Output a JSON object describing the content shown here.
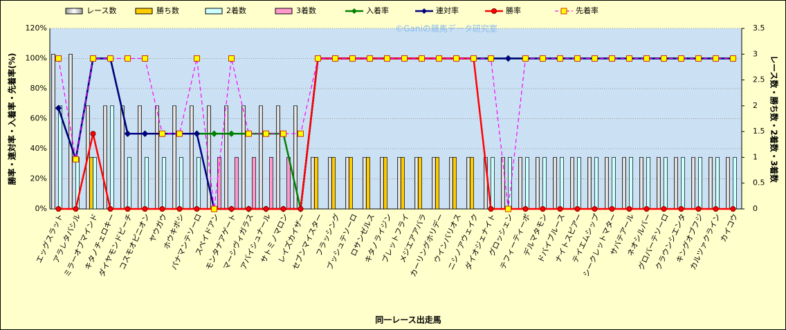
{
  "chart_data": {
    "type": "combo",
    "watermark": "©Ganiの競馬データ研究室",
    "xlabel": "同一レース出走馬",
    "ylabel": "勝率・連対率・入着率・先着率(%)",
    "y2label": "レース数・勝ち数・2着数・3着数",
    "categories": [
      "エッグスラット",
      "アラレタバシル",
      "ミラーオブマインド",
      "キタノチェロキー",
      "ダイヤモンドビーチ",
      "コスモオピニオン",
      "ヤウガウ",
      "ホウキボシ",
      "パナマンテソーロ",
      "スペイドアン",
      "モンタナアゲート",
      "マーシヴィガラス",
      "アバイシュナール",
      "サトミノマロン",
      "レイズカイザー",
      "セブンマイスター",
      "フラッシング",
      "ブッシュテソーロ",
      "ロサンゼルス",
      "キタノライジン",
      "ブレットフライ",
      "メジエアアバラ",
      "カーリングホリデー",
      "ウインバリオス",
      "ニシノアウェイク",
      "ダイオジェナイト",
      "グロッシェン",
      "テフィーティーボ",
      "デルマタモン",
      "ドバイブルース",
      "ナイトスピアー",
      "テイエムシップ",
      "シークレットマター",
      "サバテアール",
      "ネオシルバー",
      "グロバーテソーロ",
      "クラウンシエンタ",
      "キングオブフジ",
      "カルツァクライン",
      "カイコウ"
    ],
    "ylim": [
      0,
      120
    ],
    "yticks": [
      {
        "value": 0,
        "label": "0%"
      },
      {
        "value": 20,
        "label": "20%"
      },
      {
        "value": 40,
        "label": "40%"
      },
      {
        "value": 60,
        "label": "60%"
      },
      {
        "value": 80,
        "label": "80%"
      },
      {
        "value": 100,
        "label": "100%"
      },
      {
        "value": 120,
        "label": "120%"
      }
    ],
    "y2lim": [
      0,
      3.5
    ],
    "y2ticks": [
      0,
      0.5,
      1,
      1.5,
      2,
      2.5,
      3,
      3.5
    ],
    "grid": true,
    "series": [
      {
        "name": "レース数",
        "type": "bar",
        "axis": "y2",
        "color": "#ffffff",
        "values": [
          3,
          3,
          2,
          2,
          2,
          2,
          2,
          2,
          2,
          2,
          2,
          2,
          2,
          2,
          2,
          1,
          1,
          1,
          1,
          1,
          1,
          1,
          1,
          1,
          1,
          1,
          1,
          1,
          1,
          1,
          1,
          1,
          1,
          1,
          1,
          1,
          1,
          1,
          1,
          1
        ]
      },
      {
        "name": "勝ち数",
        "type": "bar",
        "axis": "y2",
        "color": "#ffcc00",
        "values": [
          0,
          0,
          1,
          0,
          0,
          0,
          0,
          0,
          0,
          0,
          0,
          0,
          0,
          0,
          0,
          1,
          1,
          1,
          1,
          1,
          1,
          1,
          1,
          1,
          1,
          0,
          0,
          0,
          0,
          0,
          0,
          0,
          0,
          0,
          0,
          0,
          0,
          0,
          0,
          0
        ]
      },
      {
        "name": "2着数",
        "type": "bar",
        "axis": "y2",
        "color": "#ccffff",
        "values": [
          2,
          1,
          1,
          2,
          1,
          1,
          1,
          1,
          1,
          0,
          0,
          0,
          0,
          0,
          0,
          0,
          0,
          0,
          0,
          0,
          0,
          0,
          0,
          0,
          0,
          1,
          1,
          1,
          1,
          1,
          1,
          1,
          1,
          1,
          1,
          1,
          1,
          1,
          1,
          1
        ]
      },
      {
        "name": "3着数",
        "type": "bar",
        "axis": "y2",
        "color": "#ff99cc",
        "values": [
          0,
          0,
          0,
          0,
          0,
          0,
          0,
          0,
          0,
          1,
          1,
          1,
          1,
          1,
          0,
          0,
          0,
          0,
          0,
          0,
          0,
          0,
          0,
          0,
          0,
          0,
          0,
          0,
          0,
          0,
          0,
          0,
          0,
          0,
          0,
          0,
          0,
          0,
          0,
          0
        ]
      },
      {
        "name": "入着率",
        "type": "line",
        "marker": "diamond",
        "color": "#008000",
        "values": [
          67,
          33,
          100,
          100,
          50,
          50,
          50,
          50,
          50,
          50,
          50,
          50,
          50,
          50,
          0,
          100,
          100,
          100,
          100,
          100,
          100,
          100,
          100,
          100,
          100,
          100,
          100,
          100,
          100,
          100,
          100,
          100,
          100,
          100,
          100,
          100,
          100,
          100,
          100,
          100
        ]
      },
      {
        "name": "連対率",
        "type": "line",
        "marker": "diamond",
        "color": "#000080",
        "values": [
          67,
          33,
          100,
          100,
          50,
          50,
          50,
          50,
          50,
          0,
          0,
          0,
          0,
          0,
          0,
          100,
          100,
          100,
          100,
          100,
          100,
          100,
          100,
          100,
          100,
          100,
          100,
          100,
          100,
          100,
          100,
          100,
          100,
          100,
          100,
          100,
          100,
          100,
          100,
          100
        ]
      },
      {
        "name": "勝率",
        "type": "line",
        "marker": "circle",
        "color": "#ff0000",
        "values": [
          0,
          0,
          50,
          0,
          0,
          0,
          0,
          0,
          0,
          0,
          0,
          0,
          0,
          0,
          0,
          100,
          100,
          100,
          100,
          100,
          100,
          100,
          100,
          100,
          100,
          0,
          0,
          0,
          0,
          0,
          0,
          0,
          0,
          0,
          0,
          0,
          0,
          0,
          0,
          0
        ]
      },
      {
        "name": "先着率",
        "type": "line",
        "marker": "square",
        "dashed": true,
        "color": "#ff00ff",
        "values": [
          100,
          33,
          100,
          100,
          100,
          100,
          50,
          50,
          100,
          0,
          100,
          50,
          50,
          50,
          50,
          100,
          100,
          100,
          100,
          100,
          100,
          100,
          100,
          100,
          100,
          100,
          0,
          100,
          100,
          100,
          100,
          100,
          100,
          100,
          100,
          100,
          100,
          100,
          100,
          100
        ]
      }
    ]
  }
}
